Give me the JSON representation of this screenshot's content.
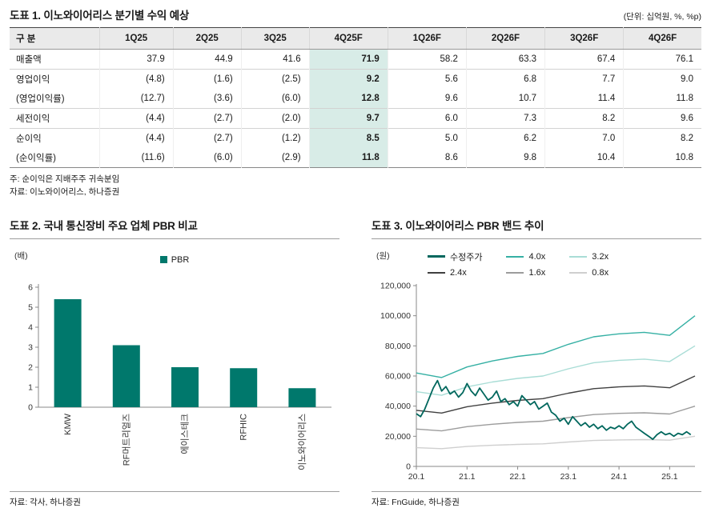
{
  "table1": {
    "title": "도표 1.  이노와이어리스 분기별 수익 예상",
    "unit_note": "(단위: 십억원, %, %p)",
    "columns": [
      "구 분",
      "1Q25",
      "2Q25",
      "3Q25",
      "4Q25F",
      "1Q26F",
      "2Q26F",
      "3Q26F",
      "4Q26F"
    ],
    "highlight_col": 4,
    "highlight_color": "#d8ece7",
    "rows": [
      {
        "label": "매출액",
        "sub": false,
        "group_start": true,
        "values": [
          "37.9",
          "44.9",
          "41.6",
          "71.9",
          "58.2",
          "63.3",
          "67.4",
          "76.1"
        ]
      },
      {
        "label": "영업이익",
        "sub": false,
        "group_start": true,
        "values": [
          "(4.8)",
          "(1.6)",
          "(2.5)",
          "9.2",
          "5.6",
          "6.8",
          "7.7",
          "9.0"
        ]
      },
      {
        "label": "(영업이익률)",
        "sub": true,
        "group_start": false,
        "values": [
          "(12.7)",
          "(3.6)",
          "(6.0)",
          "12.8",
          "9.6",
          "10.7",
          "11.4",
          "11.8"
        ]
      },
      {
        "label": "세전이익",
        "sub": false,
        "group_start": true,
        "values": [
          "(4.4)",
          "(2.7)",
          "(2.0)",
          "9.7",
          "6.0",
          "7.3",
          "8.2",
          "9.6"
        ]
      },
      {
        "label": "순이익",
        "sub": false,
        "group_start": true,
        "values": [
          "(4.4)",
          "(2.7)",
          "(1.2)",
          "8.5",
          "5.0",
          "6.2",
          "7.0",
          "8.2"
        ]
      },
      {
        "label": "(순이익률)",
        "sub": true,
        "group_start": false,
        "values": [
          "(11.6)",
          "(6.0)",
          "(2.9)",
          "11.8",
          "8.6",
          "9.8",
          "10.4",
          "10.8"
        ]
      }
    ],
    "note": "주: 순이익은 지배주주 귀속분임",
    "source": "자료: 이노와이어리스, 하나증권"
  },
  "chart2": {
    "title": "도표 2.  국내 통신장비 주요 업체 PBR 비교",
    "unit": "(배)",
    "source": "자료: 각사, 하나증권"
  },
  "chart3": {
    "title": "도표 3.  이노와이어리스 PBR 밴드 추이",
    "unit": "(원)",
    "source": "자료: FnGuide, 하나증권"
  },
  "chart_data": [
    {
      "type": "bar",
      "title": "국내 통신장비 주요 업체 PBR 비교",
      "legend": [
        {
          "label": "PBR",
          "color": "#00786c"
        }
      ],
      "categories": [
        "KMW",
        "RF머트리얼즈",
        "에이스테크",
        "RFHIC",
        "이노와이어리스"
      ],
      "values": [
        5.4,
        3.1,
        2.0,
        1.95,
        0.95
      ],
      "xlabel": "",
      "ylabel": "(배)",
      "ylim": [
        0,
        6
      ],
      "ytick": 1,
      "grid": false
    },
    {
      "type": "line",
      "title": "이노와이어리스 PBR 밴드 추이",
      "ylabel": "(원)",
      "ylim": [
        0,
        120000
      ],
      "ytick": 20000,
      "grid": false,
      "xlim": [
        0,
        66
      ],
      "xticks": [
        {
          "pos": 0,
          "label": "20.1"
        },
        {
          "pos": 12,
          "label": "21.1"
        },
        {
          "pos": 24,
          "label": "22.1"
        },
        {
          "pos": 36,
          "label": "23.1"
        },
        {
          "pos": 48,
          "label": "24.1"
        },
        {
          "pos": 60,
          "label": "25.1"
        }
      ],
      "price_series": "수정주가",
      "series": [
        {
          "name": "수정주가",
          "color": "#00675d",
          "width": 1.8,
          "x": [
            0,
            1,
            2,
            3,
            4,
            5,
            6,
            7,
            8,
            9,
            10,
            11,
            12,
            13,
            14,
            15,
            16,
            17,
            18,
            19,
            20,
            21,
            22,
            23,
            24,
            25,
            26,
            27,
            28,
            29,
            30,
            31,
            32,
            33,
            34,
            35,
            36,
            37,
            38,
            39,
            40,
            41,
            42,
            43,
            44,
            45,
            46,
            47,
            48,
            49,
            50,
            51,
            52,
            53,
            54,
            55,
            56,
            57,
            58,
            59,
            60,
            61,
            62,
            63,
            64,
            65
          ],
          "values": [
            35000,
            33000,
            38000,
            45000,
            52000,
            57000,
            50000,
            53000,
            48000,
            50000,
            46000,
            49000,
            55000,
            50000,
            47000,
            52000,
            48000,
            44000,
            46000,
            50000,
            43000,
            45000,
            41000,
            43000,
            40000,
            47000,
            44000,
            41000,
            43000,
            38000,
            40000,
            42000,
            36000,
            34000,
            30000,
            32000,
            28000,
            33000,
            30000,
            27000,
            29000,
            26000,
            28000,
            25000,
            27000,
            24000,
            26000,
            25000,
            27000,
            25000,
            28000,
            30000,
            26000,
            24000,
            22000,
            20000,
            18000,
            21000,
            23000,
            21000,
            22000,
            20000,
            22000,
            21000,
            23000,
            21000
          ]
        },
        {
          "name": "4.0x",
          "color": "#35b0a4",
          "width": 1.4,
          "x": [
            0,
            6,
            12,
            18,
            24,
            30,
            36,
            42,
            48,
            54,
            60,
            66
          ],
          "values": [
            62000,
            59000,
            66000,
            70000,
            73000,
            75000,
            81000,
            86000,
            88000,
            89000,
            87000,
            100000
          ]
        },
        {
          "name": "3.2x",
          "color": "#a9ddd6",
          "width": 1.4,
          "x": [
            0,
            6,
            12,
            18,
            24,
            30,
            36,
            42,
            48,
            54,
            60,
            66
          ],
          "values": [
            49600,
            47200,
            52800,
            56000,
            58400,
            60000,
            64800,
            68800,
            70400,
            71200,
            69600,
            80000
          ]
        },
        {
          "name": "2.4x",
          "color": "#404040",
          "width": 1.4,
          "x": [
            0,
            6,
            12,
            18,
            24,
            30,
            36,
            42,
            48,
            54,
            60,
            66
          ],
          "values": [
            37200,
            35400,
            39600,
            42000,
            43800,
            45000,
            48600,
            51600,
            52800,
            53400,
            52200,
            60000
          ]
        },
        {
          "name": "1.6x",
          "color": "#9c9c9c",
          "width": 1.4,
          "x": [
            0,
            6,
            12,
            18,
            24,
            30,
            36,
            42,
            48,
            54,
            60,
            66
          ],
          "values": [
            24800,
            23600,
            26400,
            28000,
            29200,
            30000,
            32400,
            34400,
            35200,
            35600,
            34800,
            40000
          ]
        },
        {
          "name": "0.8x",
          "color": "#cfcfcf",
          "width": 1.4,
          "x": [
            0,
            6,
            12,
            18,
            24,
            30,
            36,
            42,
            48,
            54,
            60,
            66
          ],
          "values": [
            12400,
            11800,
            13200,
            14000,
            14600,
            15000,
            16200,
            17200,
            17600,
            17800,
            17400,
            20000
          ]
        }
      ]
    }
  ]
}
